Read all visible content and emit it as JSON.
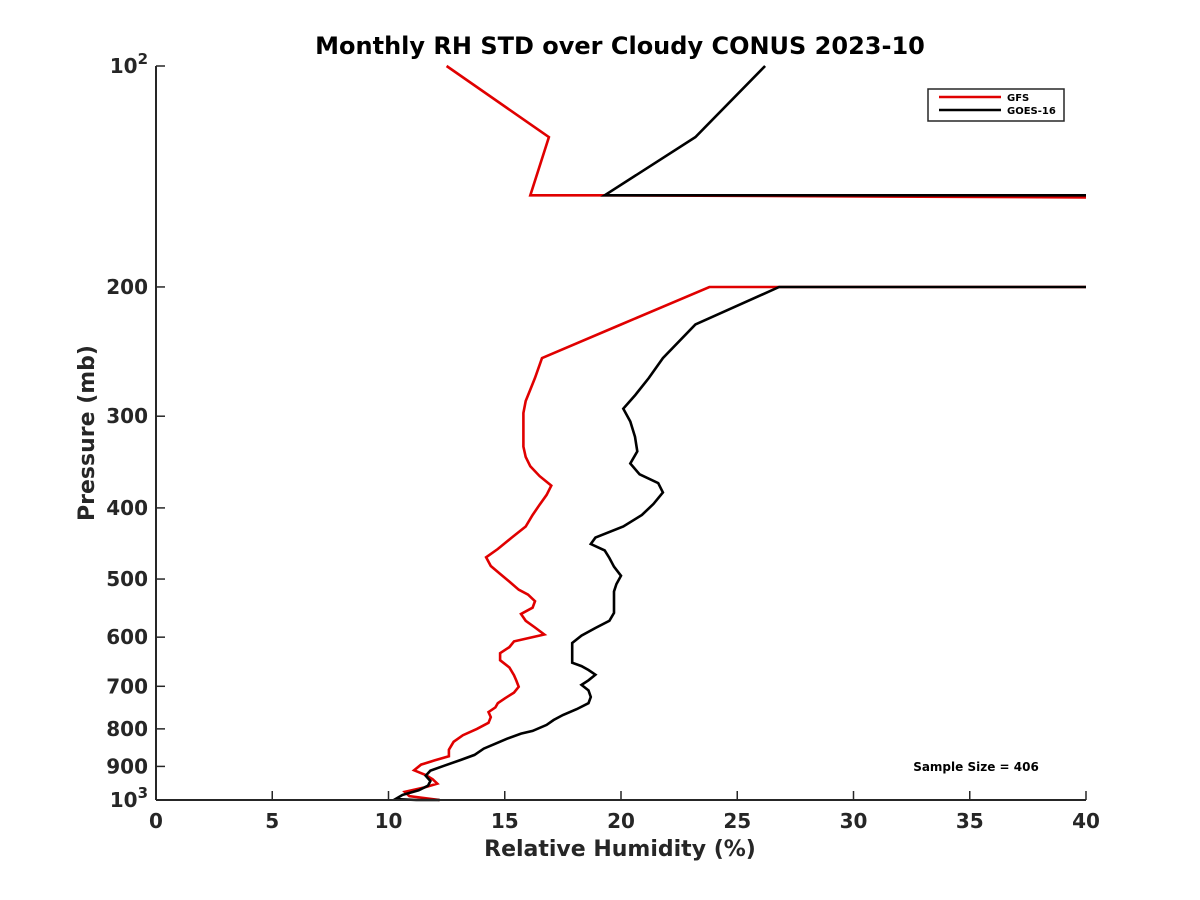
{
  "chart_data": {
    "type": "line",
    "title": "Monthly RH STD over Cloudy CONUS  2023-10",
    "xlabel": "Relative Humidity (%)",
    "ylabel": "Pressure (mb)",
    "xlim": [
      0,
      40
    ],
    "ylim": [
      100,
      1000
    ],
    "y_scale": "log",
    "y_reversed": true,
    "grid": false,
    "legend_position": "top-right",
    "x_ticks": [
      0,
      5,
      10,
      15,
      20,
      25,
      30,
      35,
      40
    ],
    "x_tick_labels": [
      "0",
      "5",
      "10",
      "15",
      "20",
      "25",
      "30",
      "35",
      "40"
    ],
    "y_ticks": [
      100,
      200,
      300,
      400,
      500,
      600,
      700,
      800,
      900,
      1000
    ],
    "y_tick_labels": [
      {
        "base": "10",
        "exp": "2"
      },
      {
        "base": "200",
        "exp": ""
      },
      {
        "base": "300",
        "exp": ""
      },
      {
        "base": "400",
        "exp": ""
      },
      {
        "base": "500",
        "exp": ""
      },
      {
        "base": "600",
        "exp": ""
      },
      {
        "base": "700",
        "exp": ""
      },
      {
        "base": "800",
        "exp": ""
      },
      {
        "base": "900",
        "exp": ""
      },
      {
        "base": "10",
        "exp": "3"
      }
    ],
    "annotation": "Sample Size = 406",
    "series": [
      {
        "name": "GFS",
        "color": "#e00000",
        "segments": [
          [
            [
              12.5,
              100
            ],
            [
              16.9,
              125
            ],
            [
              16.1,
              150
            ],
            [
              19.3,
              150
            ],
            [
              40,
              151
            ]
          ],
          [
            [
              40,
              200
            ],
            [
              26.8,
              200
            ],
            [
              23.8,
              200
            ],
            [
              20.0,
              225
            ],
            [
              16.6,
              250
            ],
            [
              16.3,
              266
            ],
            [
              16.1,
              276
            ],
            [
              15.9,
              286
            ],
            [
              15.8,
              297
            ],
            [
              15.8,
              308
            ],
            [
              15.8,
              319
            ],
            [
              15.8,
              330
            ],
            [
              15.9,
              341
            ],
            [
              16.1,
              351
            ],
            [
              16.5,
              362
            ],
            [
              17.0,
              373
            ],
            [
              16.8,
              384
            ],
            [
              16.5,
              396
            ],
            [
              16.2,
              409
            ],
            [
              15.9,
              424
            ],
            [
              15.3,
              439
            ],
            [
              14.7,
              455
            ],
            [
              14.2,
              467
            ],
            [
              14.4,
              480
            ],
            [
              14.8,
              492
            ],
            [
              15.2,
              504
            ],
            [
              15.6,
              517
            ],
            [
              16.0,
              525
            ],
            [
              16.3,
              536
            ],
            [
              16.2,
              547
            ],
            [
              15.7,
              558
            ],
            [
              15.9,
              570
            ],
            [
              16.3,
              582
            ],
            [
              16.7,
              595
            ],
            [
              15.4,
              608
            ],
            [
              15.2,
              619
            ],
            [
              14.8,
              631
            ],
            [
              14.8,
              645
            ],
            [
              15.2,
              660
            ],
            [
              15.4,
              676
            ],
            [
              15.5,
              688
            ],
            [
              15.6,
              701
            ],
            [
              15.4,
              714
            ],
            [
              15.0,
              727
            ],
            [
              14.7,
              738
            ],
            [
              14.6,
              748
            ],
            [
              14.3,
              759
            ],
            [
              14.4,
              771
            ],
            [
              14.3,
              785
            ],
            [
              13.8,
              800
            ],
            [
              13.2,
              816
            ],
            [
              12.8,
              833
            ],
            [
              12.6,
              854
            ],
            [
              12.6,
              872
            ],
            [
              12.0,
              883
            ],
            [
              11.4,
              895
            ],
            [
              11.1,
              911
            ],
            [
              11.6,
              925
            ],
            [
              11.9,
              937
            ],
            [
              12.1,
              950
            ],
            [
              11.5,
              962
            ],
            [
              10.7,
              975
            ],
            [
              10.9,
              988
            ],
            [
              12.2,
              1000
            ]
          ]
        ]
      },
      {
        "name": "GOES-16",
        "color": "#000000",
        "segments": [
          [
            [
              26.2,
              100
            ],
            [
              23.2,
              125
            ],
            [
              19.3,
              150
            ],
            [
              40,
              150
            ]
          ],
          [
            [
              40,
              200
            ],
            [
              26.8,
              200
            ],
            [
              23.2,
              225
            ],
            [
              21.8,
              250
            ],
            [
              21.2,
              266
            ],
            [
              20.6,
              281
            ],
            [
              20.1,
              293
            ],
            [
              20.4,
              305
            ],
            [
              20.6,
              320
            ],
            [
              20.7,
              335
            ],
            [
              20.4,
              348
            ],
            [
              20.8,
              360
            ],
            [
              21.6,
              370
            ],
            [
              21.8,
              381
            ],
            [
              21.4,
              395
            ],
            [
              20.9,
              409
            ],
            [
              20.1,
              424
            ],
            [
              18.9,
              439
            ],
            [
              18.7,
              448
            ],
            [
              19.3,
              457
            ],
            [
              19.5,
              468
            ],
            [
              19.7,
              481
            ],
            [
              20.0,
              495
            ],
            [
              19.8,
              508
            ],
            [
              19.7,
              520
            ],
            [
              19.7,
              535
            ],
            [
              19.7,
              556
            ],
            [
              19.5,
              570
            ],
            [
              18.9,
              583
            ],
            [
              18.3,
              597
            ],
            [
              17.9,
              611
            ],
            [
              17.9,
              630
            ],
            [
              17.9,
              650
            ],
            [
              18.3,
              657
            ],
            [
              18.6,
              665
            ],
            [
              18.9,
              675
            ],
            [
              18.6,
              687
            ],
            [
              18.3,
              697
            ],
            [
              18.6,
              709
            ],
            [
              18.7,
              724
            ],
            [
              18.6,
              738
            ],
            [
              18.1,
              752
            ],
            [
              17.5,
              766
            ],
            [
              17.1,
              778
            ],
            [
              16.8,
              790
            ],
            [
              16.2,
              805
            ],
            [
              15.7,
              812
            ],
            [
              15.1,
              825
            ],
            [
              14.6,
              838
            ],
            [
              14.1,
              851
            ],
            [
              13.7,
              868
            ],
            [
              13.1,
              882
            ],
            [
              12.4,
              898
            ],
            [
              11.8,
              912
            ],
            [
              11.6,
              927
            ],
            [
              11.8,
              942
            ],
            [
              11.7,
              956
            ],
            [
              11.3,
              970
            ],
            [
              10.6,
              984
            ],
            [
              10.3,
              997
            ],
            [
              11.2,
              1000
            ],
            [
              12.2,
              1000
            ]
          ]
        ]
      }
    ]
  }
}
